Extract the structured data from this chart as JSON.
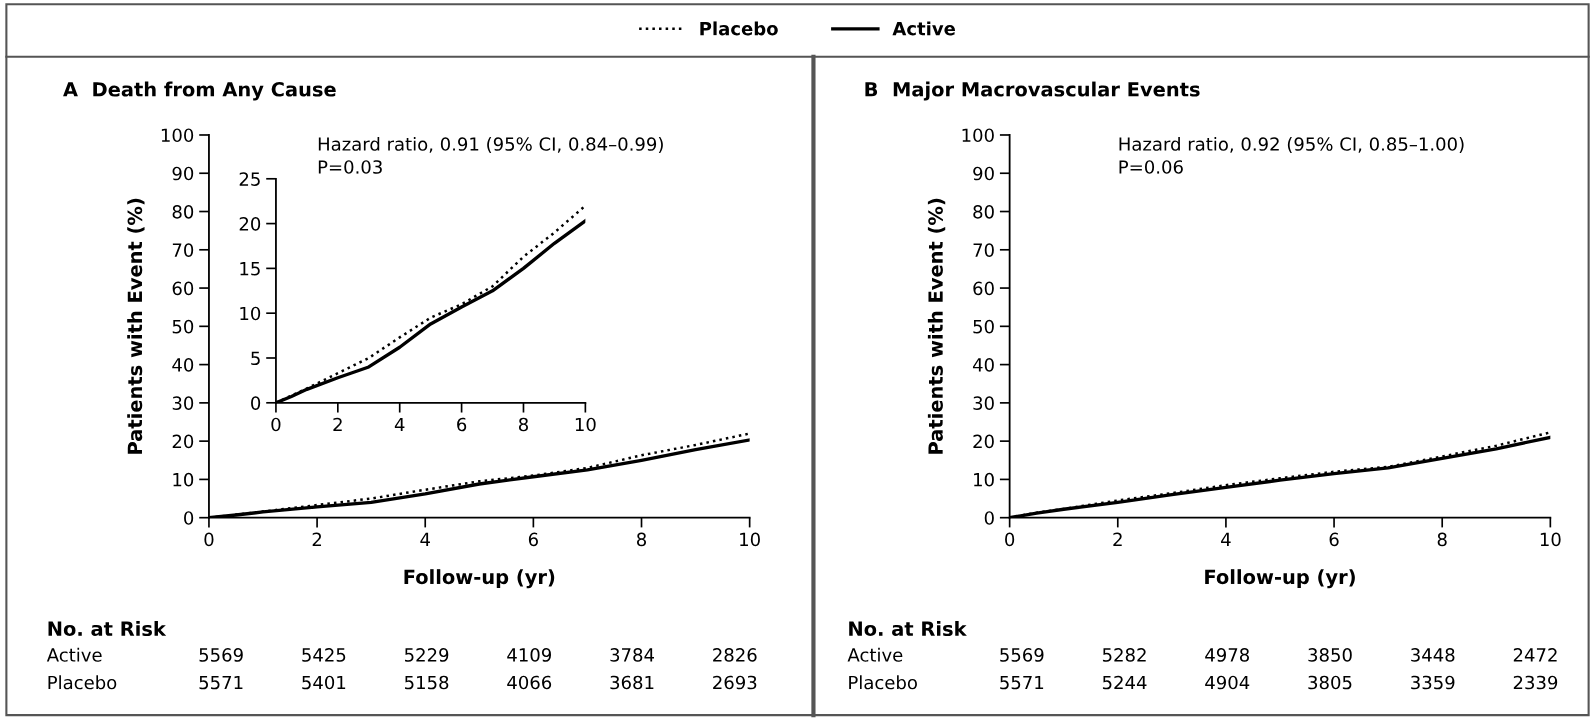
{
  "chart_data": [
    {
      "type": "line",
      "title": "A  Death from Any Cause",
      "xlabel": "Follow-up (yr)",
      "ylabel": "Patients with Event (%)",
      "legend": "top",
      "x": [
        0,
        0.5,
        1,
        2,
        3,
        4,
        5,
        6,
        7,
        8,
        9,
        10
      ],
      "series": [
        {
          "name": "Placebo",
          "color": "#000000",
          "line_style": "dotted",
          "values": [
            0,
            0.8,
            1.6,
            3.3,
            5,
            7.3,
            9.5,
            11,
            13,
            16.3,
            19,
            22
          ]
        },
        {
          "name": "Active",
          "color": "#000000",
          "line_style": "solid",
          "values": [
            0,
            0.7,
            1.5,
            2.8,
            4,
            6.2,
            8.8,
            10.7,
            12.5,
            15,
            17.8,
            20.3
          ]
        }
      ],
      "xlim": [
        0,
        10
      ],
      "xticks": [
        0,
        2,
        4,
        6,
        8,
        10
      ],
      "ylim": [
        0,
        100
      ],
      "yticks": [
        0,
        10,
        20,
        30,
        40,
        50,
        60,
        70,
        80,
        90,
        100
      ],
      "annotations": [
        "Hazard ratio, 0.91 (95% CI, 0.84–0.99)",
        "P=0.03",
        "No. at Risk",
        "Active",
        "5569",
        "5425",
        "5229",
        "4109",
        "3784",
        "2826",
        "Placebo",
        "5571",
        "5401",
        "5158",
        "4066",
        "3681",
        "2693"
      ]
    },
    {
      "type": "line",
      "x": [
        0,
        0.5,
        1,
        2,
        3,
        4,
        5,
        6,
        7,
        8,
        9,
        10
      ],
      "series": [
        {
          "color": "#000000",
          "line_style": "dotted",
          "values": [
            0,
            0.8,
            1.6,
            3.3,
            5,
            7.3,
            9.5,
            11,
            13,
            16.3,
            19,
            22
          ]
        },
        {
          "color": "#000000",
          "line_style": "solid",
          "values": [
            0,
            0.7,
            1.5,
            2.8,
            4,
            6.2,
            8.8,
            10.7,
            12.5,
            15,
            17.8,
            20.3
          ]
        }
      ],
      "xlim": [
        0,
        10
      ],
      "xticks": [
        0,
        2,
        4,
        6,
        8,
        10
      ],
      "ylim": [
        0,
        25
      ],
      "yticks": [
        0,
        5,
        10,
        15,
        20,
        25
      ]
    },
    {
      "type": "line",
      "title": "B  Major Macrovascular Events",
      "xlabel": "Follow-up (yr)",
      "ylabel": "Patients with Event (%)",
      "x": [
        0,
        0.5,
        1,
        2,
        3,
        4,
        5,
        6,
        7,
        8,
        9,
        10
      ],
      "series": [
        {
          "color": "#000000",
          "line_style": "dotted",
          "values": [
            0,
            1.3,
            2.3,
            4.5,
            6.4,
            8.5,
            10.3,
            12,
            13.3,
            16,
            18.8,
            22.3
          ]
        },
        {
          "color": "#000000",
          "line_style": "solid",
          "values": [
            0,
            1.2,
            2.2,
            4,
            6,
            7.9,
            9.8,
            11.5,
            13,
            15.5,
            18,
            21
          ]
        }
      ],
      "xlim": [
        0,
        10
      ],
      "xticks": [
        0,
        2,
        4,
        6,
        8,
        10
      ],
      "ylim": [
        0,
        100
      ],
      "yticks": [
        0,
        10,
        20,
        30,
        40,
        50,
        60,
        70,
        80,
        90,
        100
      ],
      "annotations": [
        "Hazard ratio, 0.92 (95% CI, 0.85–1.00)",
        "P=0.06",
        "No. at Risk",
        "Active",
        "5569",
        "5282",
        "4978",
        "3850",
        "3448",
        "2472",
        "Placebo",
        "5571",
        "5244",
        "4904",
        "3805",
        "3359",
        "2339"
      ]
    }
  ]
}
